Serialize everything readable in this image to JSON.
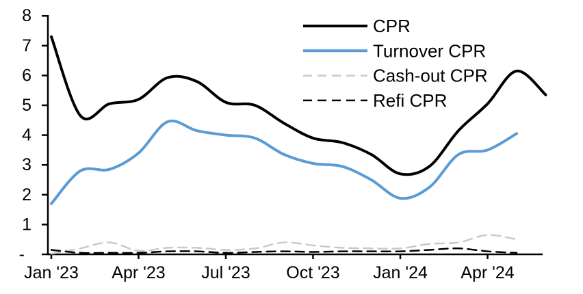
{
  "chart_data": {
    "type": "line",
    "title": "",
    "xlabel": "",
    "ylabel": "",
    "ylim": [
      0,
      8
    ],
    "grid": false,
    "legend_position": "top-center-right",
    "y_tick_labels": [
      "-",
      "1",
      "2",
      "3",
      "4",
      "5",
      "6",
      "7",
      "8"
    ],
    "x_categories": [
      "Jan '23",
      "Feb '23",
      "Mar '23",
      "Apr '23",
      "May '23",
      "Jun '23",
      "Jul '23",
      "Aug '23",
      "Sep '23",
      "Oct '23",
      "Nov '23",
      "Dec '23",
      "Jan '24",
      "Feb '24",
      "Mar '24",
      "Apr '24",
      "May '24",
      "Jun '24"
    ],
    "x_tick_every_months": 3,
    "x_tick_labels": [
      "Jan '23",
      "Apr '23",
      "Jul '23",
      "Oct '23",
      "Jan '24",
      "Apr '24"
    ],
    "series": [
      {
        "name": "CPR",
        "color": "#000000",
        "line_style": "solid",
        "line_width": 4,
        "values": [
          7.3,
          4.65,
          5.05,
          5.2,
          5.93,
          5.8,
          5.1,
          5.0,
          4.4,
          3.9,
          3.75,
          3.35,
          2.7,
          2.95,
          4.15,
          5.05,
          6.15,
          5.35
        ]
      },
      {
        "name": "Turnover CPR",
        "color": "#5B9BD5",
        "line_style": "solid",
        "line_width": 4,
        "values": [
          1.7,
          2.8,
          2.85,
          3.4,
          4.45,
          4.15,
          4.0,
          3.9,
          3.35,
          3.05,
          2.95,
          2.5,
          1.88,
          2.25,
          3.35,
          3.5,
          4.05
        ]
      },
      {
        "name": "Cash-out CPR",
        "color": "#C9C9C9",
        "line_style": "dashed",
        "line_width": 2.5,
        "values": [
          0.02,
          0.2,
          0.4,
          0.12,
          0.22,
          0.22,
          0.15,
          0.2,
          0.4,
          0.3,
          0.22,
          0.2,
          0.2,
          0.35,
          0.4,
          0.65,
          0.5
        ]
      },
      {
        "name": "Refi CPR",
        "color": "#000000",
        "line_style": "dashed",
        "line_width": 2.5,
        "values": [
          0.15,
          0.05,
          0.05,
          0.05,
          0.1,
          0.1,
          0.05,
          0.08,
          0.1,
          0.08,
          0.1,
          0.1,
          0.1,
          0.15,
          0.2,
          0.1,
          0.05
        ]
      }
    ]
  }
}
